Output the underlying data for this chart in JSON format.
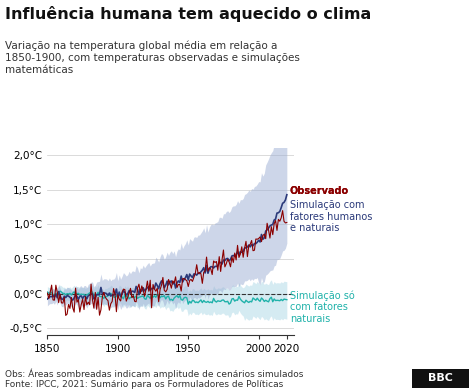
{
  "title": "Influência humana tem aquecido o clima",
  "subtitle": "Variação na temperatura global média em relação a\n1850-1900, com temperaturas observadas e simulações\nmatemáticas",
  "obs_note": "Obs: Áreas sombreadas indicam amplitude de cenários simulados",
  "source": "Fonte: IPCC, 2021: Sumário para os Formuladores de Políticas",
  "ylim": [
    -0.6,
    2.1
  ],
  "xlim": [
    1850,
    2025
  ],
  "yticks": [
    -0.5,
    0.0,
    0.5,
    1.0,
    1.5,
    2.0
  ],
  "ytick_labels": [
    "-0,5°C",
    "0,0°C",
    "0,5°C",
    "1,0°C",
    "1,5°C",
    "2,0°C"
  ],
  "xticks": [
    1850,
    1900,
    1950,
    2000,
    2020
  ],
  "legend_observed": "Observado",
  "legend_human_natural": "Simulação com\nfatores humanos\ne naturais",
  "legend_natural": "Simulação só\ncom fatores\nnaturais",
  "color_observed": "#8B0000",
  "color_human_natural_line": "#2B3A7A",
  "color_human_natural_fill": "#9DAFD4",
  "color_natural_line": "#20B2AA",
  "color_natural_fill": "#ADD8E6",
  "background": "#ffffff"
}
